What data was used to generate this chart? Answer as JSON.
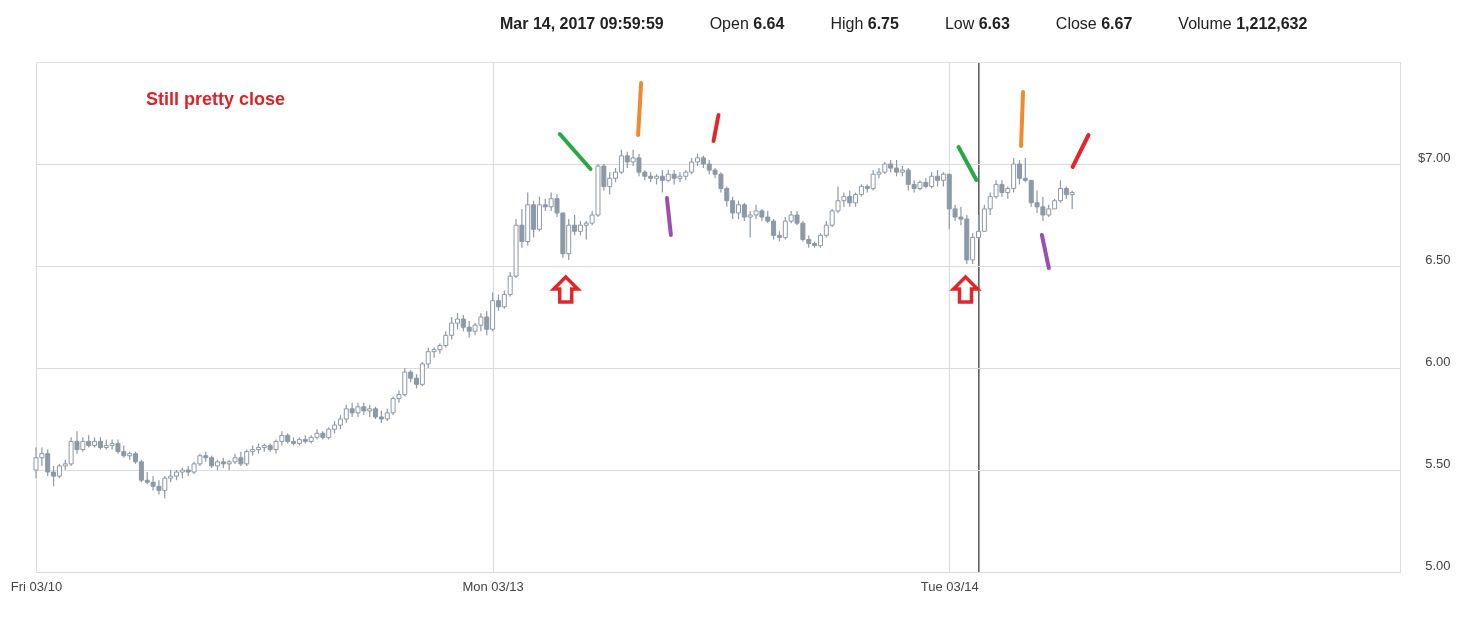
{
  "chart_data": {
    "type": "candlestick",
    "categories": [
      "Fri 03/10",
      null,
      null,
      null,
      null,
      null,
      null,
      null,
      null,
      null,
      null,
      null,
      null,
      null,
      null,
      null,
      null,
      null,
      null,
      null,
      null,
      null,
      null,
      null,
      null,
      null,
      null,
      null,
      null,
      null,
      null,
      null,
      null,
      null,
      null,
      null,
      null,
      null,
      null,
      null,
      null,
      null,
      null,
      null,
      null,
      null,
      null,
      null,
      null,
      null,
      null,
      null,
      null,
      null,
      null,
      null,
      null,
      null,
      null,
      null,
      null,
      null,
      null,
      null,
      null,
      null,
      null,
      null,
      null,
      null,
      null,
      null,
      null,
      null,
      null,
      null,
      null,
      null,
      "Mon 03/13",
      null,
      null,
      null,
      null,
      null,
      null,
      null,
      null,
      null,
      null,
      null,
      null,
      null,
      null,
      null,
      null,
      null,
      null,
      null,
      null,
      null,
      null,
      null,
      null,
      null,
      null,
      null,
      null,
      null,
      null,
      null,
      null,
      null,
      null,
      null,
      null,
      null,
      null,
      null,
      null,
      null,
      null,
      null,
      null,
      null,
      null,
      null,
      null,
      null,
      null,
      null,
      null,
      null,
      null,
      null,
      null,
      null,
      null,
      null,
      null,
      null,
      null,
      null,
      null,
      null,
      null,
      null,
      null,
      null,
      null,
      null,
      null,
      null,
      null,
      null,
      null,
      null,
      "Tue 03/14",
      null,
      null,
      null,
      null,
      null,
      null,
      null,
      null,
      null,
      null,
      null,
      null,
      null,
      null,
      null,
      null,
      null,
      null,
      null,
      null,
      null,
      null,
      null,
      null,
      null,
      null,
      null,
      null,
      null,
      null,
      null,
      null,
      null,
      null,
      null,
      null,
      null,
      null,
      null,
      null,
      null,
      null,
      null,
      null,
      null,
      null,
      null,
      null,
      null,
      null,
      null,
      null,
      null,
      null,
      null,
      null,
      null,
      null,
      null,
      null,
      null,
      null,
      null,
      null,
      null,
      null,
      null,
      null,
      null,
      null,
      null,
      null,
      null,
      null,
      null,
      null,
      null
    ],
    "ohlc": [
      [
        5.5,
        5.61,
        5.46,
        5.56
      ],
      [
        5.56,
        5.61,
        5.52,
        5.58
      ],
      [
        5.58,
        5.6,
        5.47,
        5.49
      ],
      [
        5.49,
        5.52,
        5.42,
        5.47
      ],
      [
        5.47,
        5.53,
        5.46,
        5.52
      ],
      [
        5.52,
        5.55,
        5.5,
        5.53
      ],
      [
        5.53,
        5.66,
        5.52,
        5.64
      ],
      [
        5.64,
        5.69,
        5.58,
        5.6
      ],
      [
        5.6,
        5.66,
        5.59,
        5.64
      ],
      [
        5.64,
        5.67,
        5.61,
        5.62
      ],
      [
        5.62,
        5.66,
        5.61,
        5.64
      ],
      [
        5.64,
        5.66,
        5.6,
        5.61
      ],
      [
        5.61,
        5.65,
        5.6,
        5.62
      ],
      [
        5.62,
        5.65,
        5.6,
        5.63
      ],
      [
        5.63,
        5.65,
        5.58,
        5.59
      ],
      [
        5.59,
        5.62,
        5.56,
        5.57
      ],
      [
        5.57,
        5.59,
        5.55,
        5.58
      ],
      [
        5.58,
        5.59,
        5.53,
        5.54
      ],
      [
        5.54,
        5.55,
        5.44,
        5.45
      ],
      [
        5.45,
        5.49,
        5.43,
        5.44
      ],
      [
        5.44,
        5.47,
        5.4,
        5.42
      ],
      [
        5.42,
        5.45,
        5.38,
        5.4
      ],
      [
        5.4,
        5.47,
        5.36,
        5.46
      ],
      [
        5.46,
        5.5,
        5.44,
        5.47
      ],
      [
        5.47,
        5.5,
        5.45,
        5.49
      ],
      [
        5.49,
        5.51,
        5.46,
        5.5
      ],
      [
        5.5,
        5.52,
        5.47,
        5.49
      ],
      [
        5.49,
        5.54,
        5.48,
        5.53
      ],
      [
        5.53,
        5.58,
        5.52,
        5.57
      ],
      [
        5.57,
        5.59,
        5.54,
        5.56
      ],
      [
        5.56,
        5.57,
        5.51,
        5.52
      ],
      [
        5.52,
        5.55,
        5.5,
        5.54
      ],
      [
        5.54,
        5.56,
        5.51,
        5.53
      ],
      [
        5.53,
        5.55,
        5.5,
        5.54
      ],
      [
        5.54,
        5.58,
        5.53,
        5.56
      ],
      [
        5.56,
        5.59,
        5.52,
        5.53
      ],
      [
        5.53,
        5.6,
        5.52,
        5.59
      ],
      [
        5.59,
        5.62,
        5.57,
        5.6
      ],
      [
        5.6,
        5.63,
        5.58,
        5.61
      ],
      [
        5.61,
        5.63,
        5.59,
        5.62
      ],
      [
        5.62,
        5.63,
        5.59,
        5.6
      ],
      [
        5.6,
        5.65,
        5.58,
        5.64
      ],
      [
        5.64,
        5.69,
        5.62,
        5.67
      ],
      [
        5.67,
        5.68,
        5.63,
        5.64
      ],
      [
        5.64,
        5.66,
        5.62,
        5.63
      ],
      [
        5.63,
        5.66,
        5.62,
        5.65
      ],
      [
        5.65,
        5.67,
        5.63,
        5.64
      ],
      [
        5.64,
        5.67,
        5.63,
        5.66
      ],
      [
        5.66,
        5.7,
        5.65,
        5.68
      ],
      [
        5.68,
        5.69,
        5.65,
        5.66
      ],
      [
        5.66,
        5.71,
        5.65,
        5.7
      ],
      [
        5.7,
        5.74,
        5.68,
        5.72
      ],
      [
        5.72,
        5.77,
        5.7,
        5.75
      ],
      [
        5.75,
        5.82,
        5.73,
        5.8
      ],
      [
        5.8,
        5.83,
        5.76,
        5.78
      ],
      [
        5.78,
        5.83,
        5.76,
        5.81
      ],
      [
        5.81,
        5.83,
        5.77,
        5.79
      ],
      [
        5.79,
        5.82,
        5.76,
        5.8
      ],
      [
        5.8,
        5.81,
        5.75,
        5.76
      ],
      [
        5.76,
        5.79,
        5.73,
        5.75
      ],
      [
        5.75,
        5.8,
        5.74,
        5.78
      ],
      [
        5.78,
        5.86,
        5.77,
        5.85
      ],
      [
        5.85,
        5.89,
        5.83,
        5.87
      ],
      [
        5.87,
        6.0,
        5.86,
        5.98
      ],
      [
        5.98,
        5.99,
        5.93,
        5.95
      ],
      [
        5.95,
        5.97,
        5.9,
        5.92
      ],
      [
        5.92,
        6.03,
        5.91,
        6.02
      ],
      [
        6.02,
        6.1,
        6.0,
        6.08
      ],
      [
        6.08,
        6.1,
        6.05,
        6.09
      ],
      [
        6.09,
        6.12,
        6.07,
        6.11
      ],
      [
        6.11,
        6.18,
        6.1,
        6.16
      ],
      [
        6.16,
        6.25,
        6.14,
        6.22
      ],
      [
        6.22,
        6.27,
        6.19,
        6.24
      ],
      [
        6.24,
        6.26,
        6.18,
        6.2
      ],
      [
        6.2,
        6.23,
        6.15,
        6.18
      ],
      [
        6.18,
        6.22,
        6.16,
        6.21
      ],
      [
        6.21,
        6.27,
        6.18,
        6.25
      ],
      [
        6.25,
        6.28,
        6.16,
        6.19
      ],
      [
        6.19,
        6.37,
        6.18,
        6.33
      ],
      [
        6.33,
        6.36,
        6.28,
        6.3
      ],
      [
        6.3,
        6.38,
        6.29,
        6.36
      ],
      [
        6.36,
        6.47,
        6.35,
        6.45
      ],
      [
        6.45,
        6.73,
        6.44,
        6.7
      ],
      [
        6.7,
        6.78,
        6.59,
        6.62
      ],
      [
        6.62,
        6.86,
        6.6,
        6.8
      ],
      [
        6.8,
        6.82,
        6.64,
        6.68
      ],
      [
        6.68,
        6.84,
        6.67,
        6.8
      ],
      [
        6.8,
        6.83,
        6.77,
        6.79
      ],
      [
        6.79,
        6.86,
        6.77,
        6.83
      ],
      [
        6.83,
        6.85,
        6.74,
        6.76
      ],
      [
        6.76,
        6.76,
        6.54,
        6.56
      ],
      [
        6.56,
        6.73,
        6.53,
        6.7
      ],
      [
        6.7,
        6.75,
        6.65,
        6.67
      ],
      [
        6.67,
        6.72,
        6.65,
        6.7
      ],
      [
        6.7,
        6.72,
        6.63,
        6.71
      ],
      [
        6.71,
        6.77,
        6.7,
        6.75
      ],
      [
        6.75,
        7.0,
        6.74,
        6.99
      ],
      [
        6.99,
        7.0,
        6.87,
        6.89
      ],
      [
        6.89,
        6.96,
        6.85,
        6.93
      ],
      [
        6.93,
        6.98,
        6.91,
        6.96
      ],
      [
        6.96,
        7.07,
        6.95,
        7.04
      ],
      [
        7.04,
        7.06,
        6.98,
        7.01
      ],
      [
        7.01,
        7.07,
        6.99,
        7.03
      ],
      [
        7.03,
        7.05,
        6.94,
        6.96
      ],
      [
        6.96,
        6.97,
        6.92,
        6.94
      ],
      [
        6.94,
        6.96,
        6.91,
        6.93
      ],
      [
        6.93,
        6.95,
        6.9,
        6.94
      ],
      [
        6.94,
        6.97,
        6.86,
        6.92
      ],
      [
        6.92,
        6.97,
        6.91,
        6.95
      ],
      [
        6.95,
        6.97,
        6.9,
        6.93
      ],
      [
        6.93,
        6.96,
        6.91,
        6.94
      ],
      [
        6.94,
        6.97,
        6.92,
        6.96
      ],
      [
        6.96,
        7.03,
        6.95,
        7.01
      ],
      [
        7.01,
        7.05,
        6.99,
        7.03
      ],
      [
        7.03,
        7.04,
        6.98,
        7.0
      ],
      [
        7.0,
        7.02,
        6.95,
        6.97
      ],
      [
        6.97,
        6.98,
        6.93,
        6.95
      ],
      [
        6.95,
        6.96,
        6.86,
        6.88
      ],
      [
        6.88,
        6.89,
        6.79,
        6.82
      ],
      [
        6.82,
        6.84,
        6.73,
        6.76
      ],
      [
        6.76,
        6.82,
        6.73,
        6.8
      ],
      [
        6.8,
        6.81,
        6.72,
        6.74
      ],
      [
        6.74,
        6.77,
        6.64,
        6.75
      ],
      [
        6.75,
        6.8,
        6.73,
        6.77
      ],
      [
        6.77,
        6.78,
        6.72,
        6.74
      ],
      [
        6.74,
        6.77,
        6.71,
        6.72
      ],
      [
        6.72,
        6.73,
        6.63,
        6.65
      ],
      [
        6.65,
        6.67,
        6.62,
        6.64
      ],
      [
        6.64,
        6.74,
        6.63,
        6.72
      ],
      [
        6.72,
        6.77,
        6.71,
        6.75
      ],
      [
        6.75,
        6.77,
        6.7,
        6.71
      ],
      [
        6.71,
        6.72,
        6.62,
        6.63
      ],
      [
        6.63,
        6.65,
        6.59,
        6.61
      ],
      [
        6.61,
        6.62,
        6.59,
        6.6
      ],
      [
        6.6,
        6.66,
        6.59,
        6.65
      ],
      [
        6.65,
        6.72,
        6.64,
        6.7
      ],
      [
        6.7,
        6.78,
        6.69,
        6.77
      ],
      [
        6.77,
        6.89,
        6.76,
        6.82
      ],
      [
        6.82,
        6.86,
        6.79,
        6.84
      ],
      [
        6.84,
        6.87,
        6.79,
        6.81
      ],
      [
        6.81,
        6.86,
        6.79,
        6.85
      ],
      [
        6.85,
        6.9,
        6.84,
        6.89
      ],
      [
        6.89,
        6.9,
        6.86,
        6.88
      ],
      [
        6.88,
        6.97,
        6.87,
        6.95
      ],
      [
        6.95,
        6.98,
        6.93,
        6.96
      ],
      [
        6.96,
        7.01,
        6.95,
        7.0
      ],
      [
        7.0,
        7.02,
        6.96,
        6.98
      ],
      [
        6.98,
        7.02,
        6.94,
        6.96
      ],
      [
        6.96,
        6.99,
        6.94,
        6.97
      ],
      [
        6.97,
        6.98,
        6.87,
        6.9
      ],
      [
        6.9,
        6.92,
        6.86,
        6.88
      ],
      [
        6.88,
        6.92,
        6.87,
        6.91
      ],
      [
        6.91,
        6.93,
        6.88,
        6.89
      ],
      [
        6.89,
        6.96,
        6.88,
        6.94
      ],
      [
        6.94,
        6.97,
        6.89,
        6.92
      ],
      [
        6.92,
        6.96,
        6.89,
        6.95
      ],
      [
        6.95,
        6.95,
        6.68,
        6.78
      ],
      [
        6.78,
        6.8,
        6.72,
        6.74
      ],
      [
        6.74,
        6.79,
        6.7,
        6.73
      ],
      [
        6.73,
        6.75,
        6.51,
        6.53
      ],
      [
        6.53,
        6.66,
        6.51,
        6.64
      ],
      [
        6.64,
        6.75,
        6.63,
        6.67
      ],
      [
        6.67,
        6.8,
        6.67,
        6.78
      ],
      [
        6.78,
        6.86,
        6.75,
        6.84
      ],
      [
        6.84,
        6.92,
        6.83,
        6.9
      ],
      [
        6.9,
        6.92,
        6.84,
        6.86
      ],
      [
        6.86,
        6.89,
        6.83,
        6.88
      ],
      [
        6.88,
        7.03,
        6.86,
        7.0
      ],
      [
        7.0,
        7.02,
        6.9,
        6.93
      ],
      [
        6.93,
        7.03,
        6.91,
        6.92
      ],
      [
        6.92,
        6.92,
        6.79,
        6.81
      ],
      [
        6.81,
        6.87,
        6.76,
        6.79
      ],
      [
        6.79,
        6.84,
        6.72,
        6.75
      ],
      [
        6.75,
        6.8,
        6.74,
        6.78
      ],
      [
        6.78,
        6.83,
        6.78,
        6.82
      ],
      [
        6.82,
        6.92,
        6.81,
        6.88
      ],
      [
        6.88,
        6.89,
        6.83,
        6.85
      ],
      [
        6.85,
        6.87,
        6.78,
        6.86
      ],
      null,
      null,
      null,
      null,
      null,
      null,
      null,
      null,
      null,
      null,
      null,
      null,
      null,
      null,
      null,
      null,
      null,
      null,
      null,
      null,
      null,
      null,
      null,
      null,
      null,
      null,
      null,
      null,
      null,
      null,
      null,
      null,
      null,
      null,
      null,
      null,
      null,
      null,
      null,
      null,
      null,
      null,
      null,
      null,
      null,
      null,
      null,
      null,
      null,
      null,
      null,
      null,
      null,
      null,
      null,
      null
    ],
    "color": "#8c99a6",
    "ylim": [
      5,
      7.5
    ],
    "yticks": [
      {
        "value": 5,
        "label": "5.00"
      },
      {
        "value": 5.5,
        "label": "5.50"
      },
      {
        "value": 6,
        "label": "6.00"
      },
      {
        "value": 6.5,
        "label": "6.50"
      },
      {
        "value": 7,
        "label": "$7.00"
      }
    ],
    "grid": true,
    "annotations": [
      "Mar 14, 2017 09:59:59",
      "Open 6.64",
      "High 6.75",
      "Low 6.63",
      "Close 6.67",
      "Volume 1,212,632",
      "Still pretty close"
    ]
  }
}
